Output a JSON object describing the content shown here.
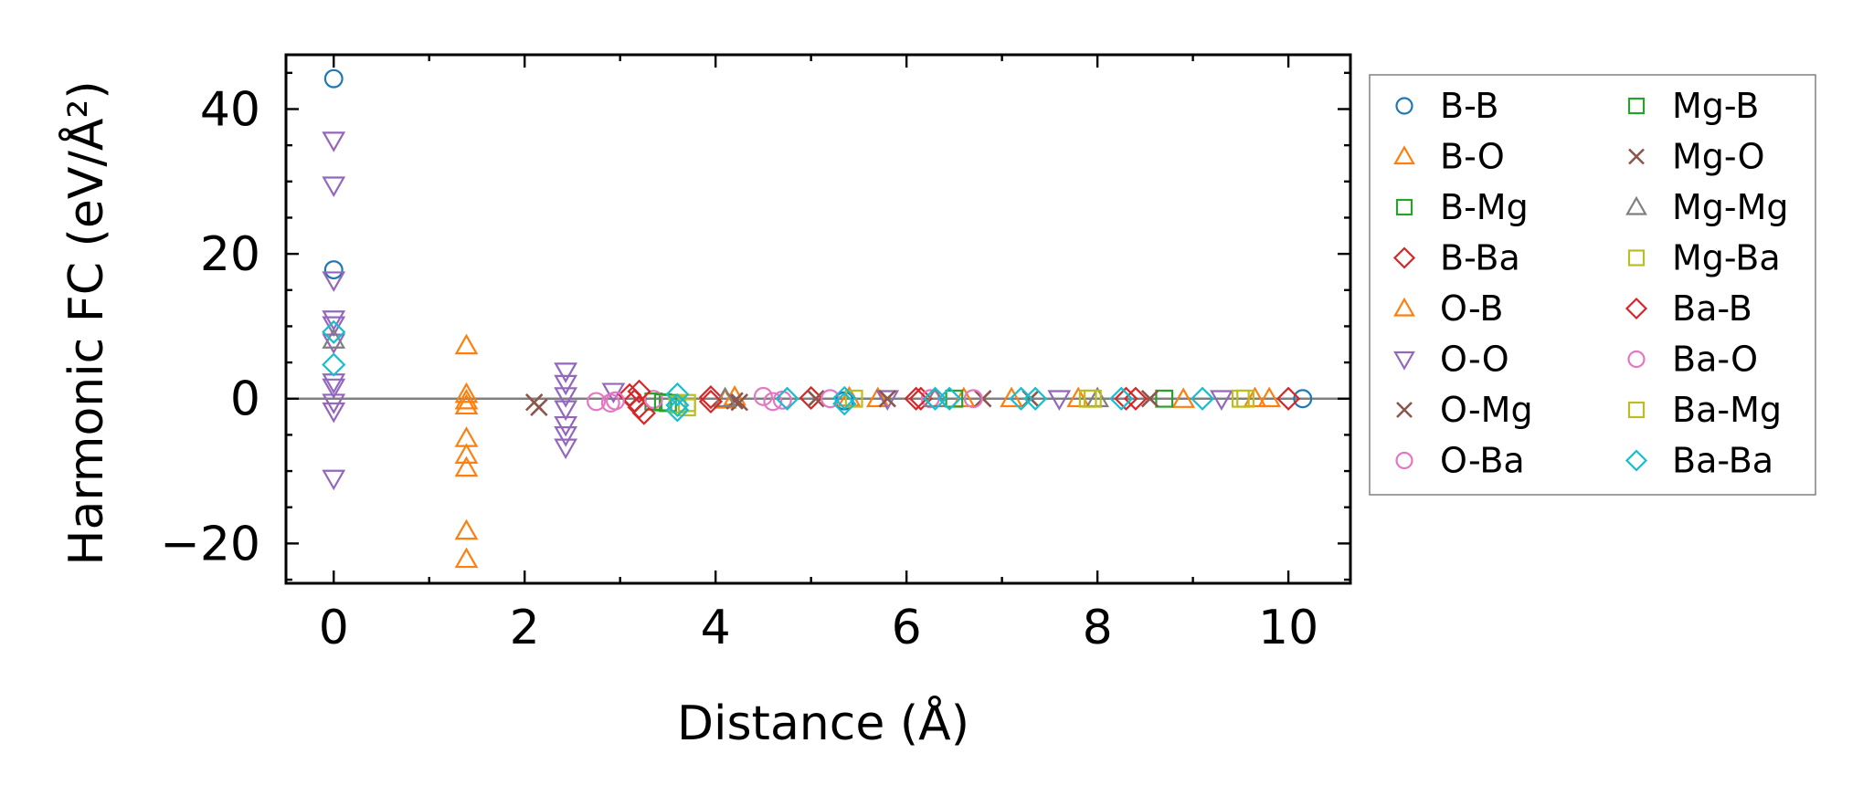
{
  "chart_data": {
    "type": "scatter",
    "title": "",
    "xlabel": "Distance (Å)",
    "ylabel": "Harmonic FC (eV/Å²)",
    "xlim": [
      -0.5,
      10.65
    ],
    "ylim": [
      -25.5,
      47.5
    ],
    "x_ticks": [
      0,
      2,
      4,
      6,
      8,
      10
    ],
    "y_ticks": [
      -20,
      0,
      20,
      40
    ],
    "x_tick_labels": [
      "0",
      "2",
      "4",
      "6",
      "8",
      "10"
    ],
    "y_tick_labels": [
      "−20",
      "0",
      "20",
      "40"
    ],
    "grid": false,
    "zero_line": true,
    "legend_position": "outside-right",
    "series": [
      {
        "name": "B-B",
        "marker": "circle",
        "color": "#1f77b4",
        "points": [
          [
            0,
            44.2
          ],
          [
            0,
            17.8
          ],
          [
            5.35,
            -0.3
          ],
          [
            10.15,
            0.0
          ]
        ]
      },
      {
        "name": "B-O",
        "marker": "triangle-up",
        "color": "#ff7f0e",
        "points": [
          [
            1.39,
            7.3
          ],
          [
            1.39,
            0.6
          ],
          [
            1.39,
            -1.0
          ],
          [
            1.39,
            -5.5
          ],
          [
            1.39,
            -7.8
          ],
          [
            1.39,
            -9.6
          ],
          [
            1.39,
            -18.3
          ],
          [
            1.39,
            -22.2
          ],
          [
            4.2,
            0.2
          ],
          [
            5.4,
            0.1
          ],
          [
            6.6,
            0.0
          ],
          [
            7.8,
            0.0
          ],
          [
            8.9,
            -0.1
          ],
          [
            9.8,
            0.0
          ]
        ]
      },
      {
        "name": "B-Mg",
        "marker": "square",
        "color": "#2ca02c",
        "points": [
          [
            3.35,
            -0.4
          ],
          [
            3.5,
            -0.6
          ],
          [
            8.7,
            0.0
          ]
        ]
      },
      {
        "name": "B-Ba",
        "marker": "diamond",
        "color": "#d62728",
        "points": [
          [
            3.1,
            0.5
          ],
          [
            3.15,
            -0.3
          ],
          [
            3.2,
            -1.2
          ],
          [
            3.25,
            -2.0
          ],
          [
            3.95,
            0.2
          ],
          [
            5.0,
            0.1
          ],
          [
            6.15,
            0.0
          ],
          [
            8.3,
            0.0
          ],
          [
            10.0,
            0.0
          ]
        ]
      },
      {
        "name": "O-B",
        "marker": "triangle-up",
        "color": "#ff7f0e",
        "points": [
          [
            1.39,
            -0.3
          ],
          [
            4.1,
            -0.2
          ],
          [
            5.7,
            0.0
          ],
          [
            7.1,
            0.0
          ],
          [
            9.65,
            0.0
          ]
        ]
      },
      {
        "name": "O-O",
        "marker": "triangle-down",
        "color": "#9467bd",
        "points": [
          [
            0,
            35.7
          ],
          [
            0,
            29.5
          ],
          [
            0,
            16.4
          ],
          [
            0,
            11.0
          ],
          [
            0,
            10.2
          ],
          [
            0,
            7.8
          ],
          [
            0,
            2.3
          ],
          [
            0,
            1.6
          ],
          [
            0,
            -0.5
          ],
          [
            0,
            -1.7
          ],
          [
            0,
            -11.0
          ],
          [
            2.43,
            3.8
          ],
          [
            2.43,
            2.1
          ],
          [
            2.43,
            0.4
          ],
          [
            2.43,
            -1.4
          ],
          [
            2.43,
            -3.6
          ],
          [
            2.43,
            -5.0
          ],
          [
            2.43,
            -6.7
          ],
          [
            2.93,
            1.0
          ],
          [
            5.8,
            0.0
          ],
          [
            7.6,
            0.0
          ],
          [
            9.3,
            0.0
          ]
        ]
      },
      {
        "name": "O-Mg",
        "marker": "x",
        "color": "#8c564b",
        "points": [
          [
            2.1,
            -0.5
          ],
          [
            2.15,
            -1.2
          ],
          [
            4.2,
            -0.3
          ],
          [
            5.05,
            0.0
          ],
          [
            6.8,
            0.0
          ]
        ]
      },
      {
        "name": "O-Ba",
        "marker": "circle",
        "color": "#e377c2",
        "points": [
          [
            2.75,
            -0.4
          ],
          [
            2.9,
            -0.6
          ],
          [
            3.35,
            -0.1
          ],
          [
            4.5,
            0.3
          ],
          [
            4.7,
            -0.2
          ],
          [
            6.25,
            0.0
          ]
        ]
      },
      {
        "name": "Mg-B",
        "marker": "square",
        "color": "#2ca02c",
        "points": [
          [
            3.45,
            -0.5
          ],
          [
            6.5,
            0.0
          ]
        ]
      },
      {
        "name": "Mg-O",
        "marker": "x",
        "color": "#8c564b",
        "points": [
          [
            4.25,
            -0.5
          ],
          [
            5.8,
            0.0
          ],
          [
            7.3,
            0.0
          ],
          [
            8.55,
            0.0
          ]
        ]
      },
      {
        "name": "Mg-Mg",
        "marker": "triangle-up",
        "color": "#7f7f7f",
        "points": [
          [
            0,
            8.1
          ],
          [
            4.1,
            0.0
          ],
          [
            6.3,
            0.0
          ],
          [
            8.0,
            0.0
          ]
        ]
      },
      {
        "name": "Mg-Ba",
        "marker": "square",
        "color": "#bcbd22",
        "points": [
          [
            3.6,
            -0.8
          ],
          [
            3.7,
            -1.2
          ],
          [
            5.45,
            0.0
          ],
          [
            7.9,
            0.0
          ],
          [
            9.5,
            0.0
          ]
        ]
      },
      {
        "name": "Ba-B",
        "marker": "diamond",
        "color": "#d62728",
        "points": [
          [
            3.2,
            1.0
          ],
          [
            3.95,
            -0.4
          ],
          [
            6.1,
            0.0
          ],
          [
            8.4,
            0.0
          ]
        ]
      },
      {
        "name": "Ba-O",
        "marker": "circle",
        "color": "#e377c2",
        "points": [
          [
            2.95,
            -0.3
          ],
          [
            4.6,
            -0.4
          ],
          [
            5.2,
            0.0
          ],
          [
            6.7,
            0.0
          ]
        ]
      },
      {
        "name": "Ba-Mg",
        "marker": "square",
        "color": "#bcbd22",
        "points": [
          [
            3.7,
            -0.6
          ],
          [
            7.95,
            0.0
          ],
          [
            9.55,
            0.0
          ]
        ]
      },
      {
        "name": "Ba-Ba",
        "marker": "diamond",
        "color": "#17becf",
        "points": [
          [
            0,
            9.2
          ],
          [
            0,
            4.7
          ],
          [
            3.6,
            0.6
          ],
          [
            3.6,
            -0.9
          ],
          [
            3.6,
            -1.6
          ],
          [
            4.75,
            0.0
          ],
          [
            5.35,
            0.1
          ],
          [
            5.35,
            -0.7
          ],
          [
            6.3,
            0.0
          ],
          [
            6.45,
            0.0
          ],
          [
            7.2,
            0.0
          ],
          [
            7.35,
            0.0
          ],
          [
            8.25,
            0.0
          ],
          [
            9.1,
            0.0
          ]
        ]
      }
    ],
    "legend_order": [
      "B-B",
      "B-O",
      "B-Mg",
      "B-Ba",
      "O-B",
      "O-O",
      "O-Mg",
      "O-Ba",
      "Mg-B",
      "Mg-O",
      "Mg-Mg",
      "Mg-Ba",
      "Ba-B",
      "Ba-O",
      "Ba-Mg",
      "Ba-Ba"
    ],
    "zero_line_color": "#808080"
  }
}
